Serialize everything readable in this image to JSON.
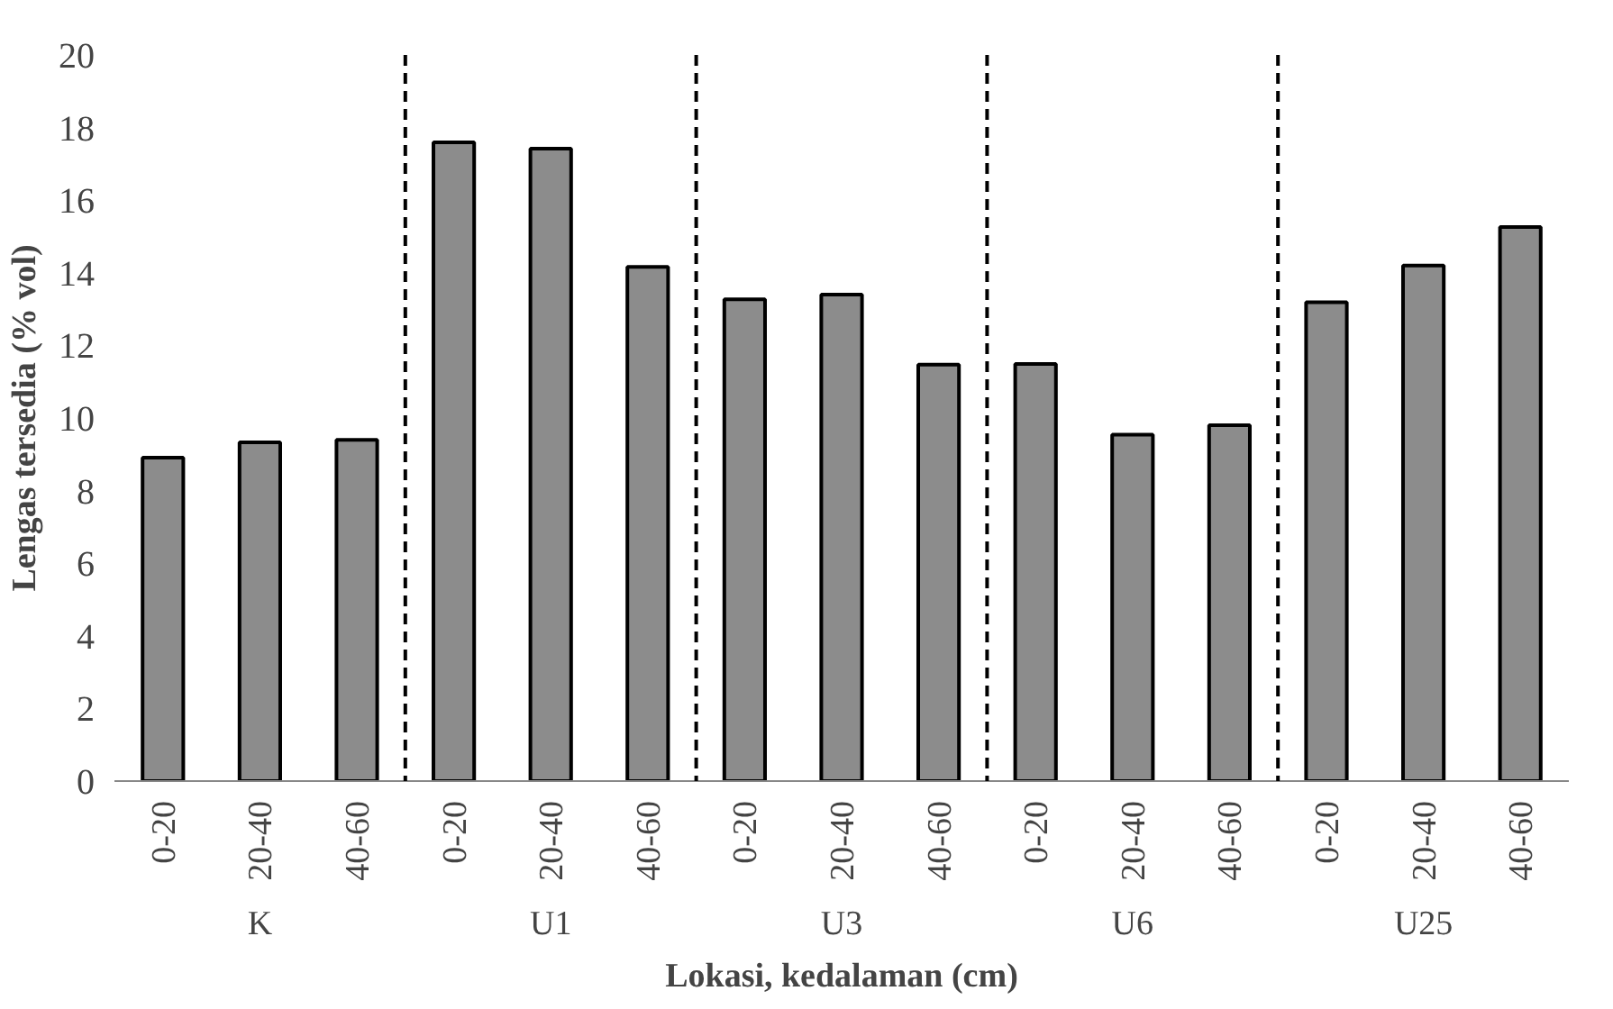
{
  "chart_data": {
    "type": "bar",
    "xlabel": "Lokasi, kedalaman (cm)",
    "ylabel": "Lengas tersedia (% vol)",
    "categories": [
      "0-20",
      "20-40",
      "40-60",
      "0-20",
      "20-40",
      "40-60",
      "0-20",
      "20-40",
      "40-60",
      "0-20",
      "20-40",
      "40-60",
      "0-20",
      "20-40",
      "40-60"
    ],
    "values": [
      8.91,
      9.33,
      9.4,
      17.59,
      17.42,
      14.16,
      13.27,
      13.4,
      11.47,
      11.49,
      9.54,
      9.8,
      13.19,
      14.2,
      15.26
    ],
    "color": "#8c8c8c",
    "ylim": [
      0,
      20
    ],
    "yticks": [
      0,
      2,
      4,
      6,
      8,
      10,
      12,
      14,
      16,
      18,
      20
    ],
    "grid": false,
    "annotations": [
      "K",
      "U1",
      "U3",
      "U6",
      "U25"
    ]
  }
}
